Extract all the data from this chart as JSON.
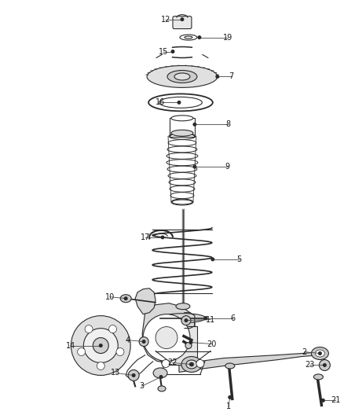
{
  "bg_color": "#ffffff",
  "fig_width": 4.38,
  "fig_height": 5.33,
  "dpi": 100,
  "line_color": "#2a2a2a",
  "label_fontsize": 7,
  "label_color": "#222222"
}
